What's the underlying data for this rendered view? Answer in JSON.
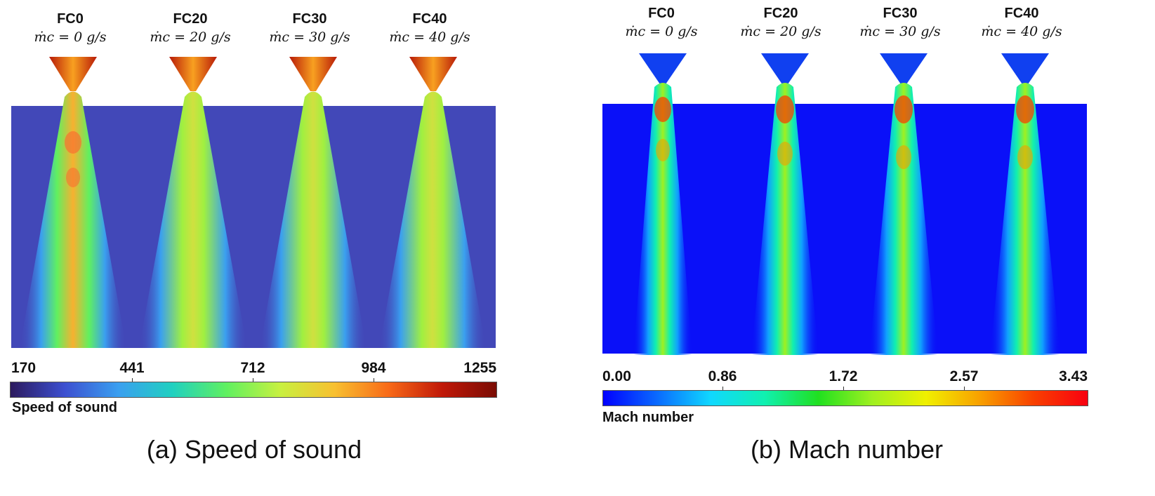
{
  "panels": [
    {
      "id": "a",
      "caption": "(a) Speed of sound",
      "colorbar_title": "Speed of sound",
      "colorbar_ticks": [
        "170",
        "441",
        "712",
        "984",
        "1255"
      ],
      "colormap": [
        "#2c1a5e",
        "#3c4fd0",
        "#3a9ff0",
        "#20d0c0",
        "#60f060",
        "#c8f040",
        "#f8c030",
        "#f86a18",
        "#c01808",
        "#7a0c04"
      ],
      "background_color": "#4248b8",
      "cases": [
        {
          "label": "FC0",
          "sub": "ṁₙ = 0 g/s"
        },
        {
          "label": "FC20",
          "sub": "ṁₙ = 20 g/s"
        },
        {
          "label": "FC30",
          "sub": "ṁₙ = 30 g/s"
        },
        {
          "label": "FC40",
          "sub": "ṁₙ = 40 g/s"
        }
      ]
    },
    {
      "id": "b",
      "caption": "(b) Mach number",
      "colorbar_title": "Mach number",
      "colorbar_ticks": [
        "0.00",
        "0.86",
        "1.72",
        "2.57",
        "3.43"
      ],
      "colormap": [
        "#0000ff",
        "#0a6aff",
        "#10d8ff",
        "#10f0b0",
        "#20e020",
        "#a0f020",
        "#f0f000",
        "#f8a000",
        "#f84000",
        "#f80010"
      ],
      "background_color": "#0a10f8",
      "cases": [
        {
          "label": "FC0",
          "sub": "ṁₙ = 0 g/s"
        },
        {
          "label": "FC20",
          "sub": "ṁₙ = 20 g/s"
        },
        {
          "label": "FC30",
          "sub": "ṁₙ = 30 g/s"
        },
        {
          "label": "FC40",
          "sub": "ṁₙ = 40 g/s"
        }
      ]
    }
  ]
}
